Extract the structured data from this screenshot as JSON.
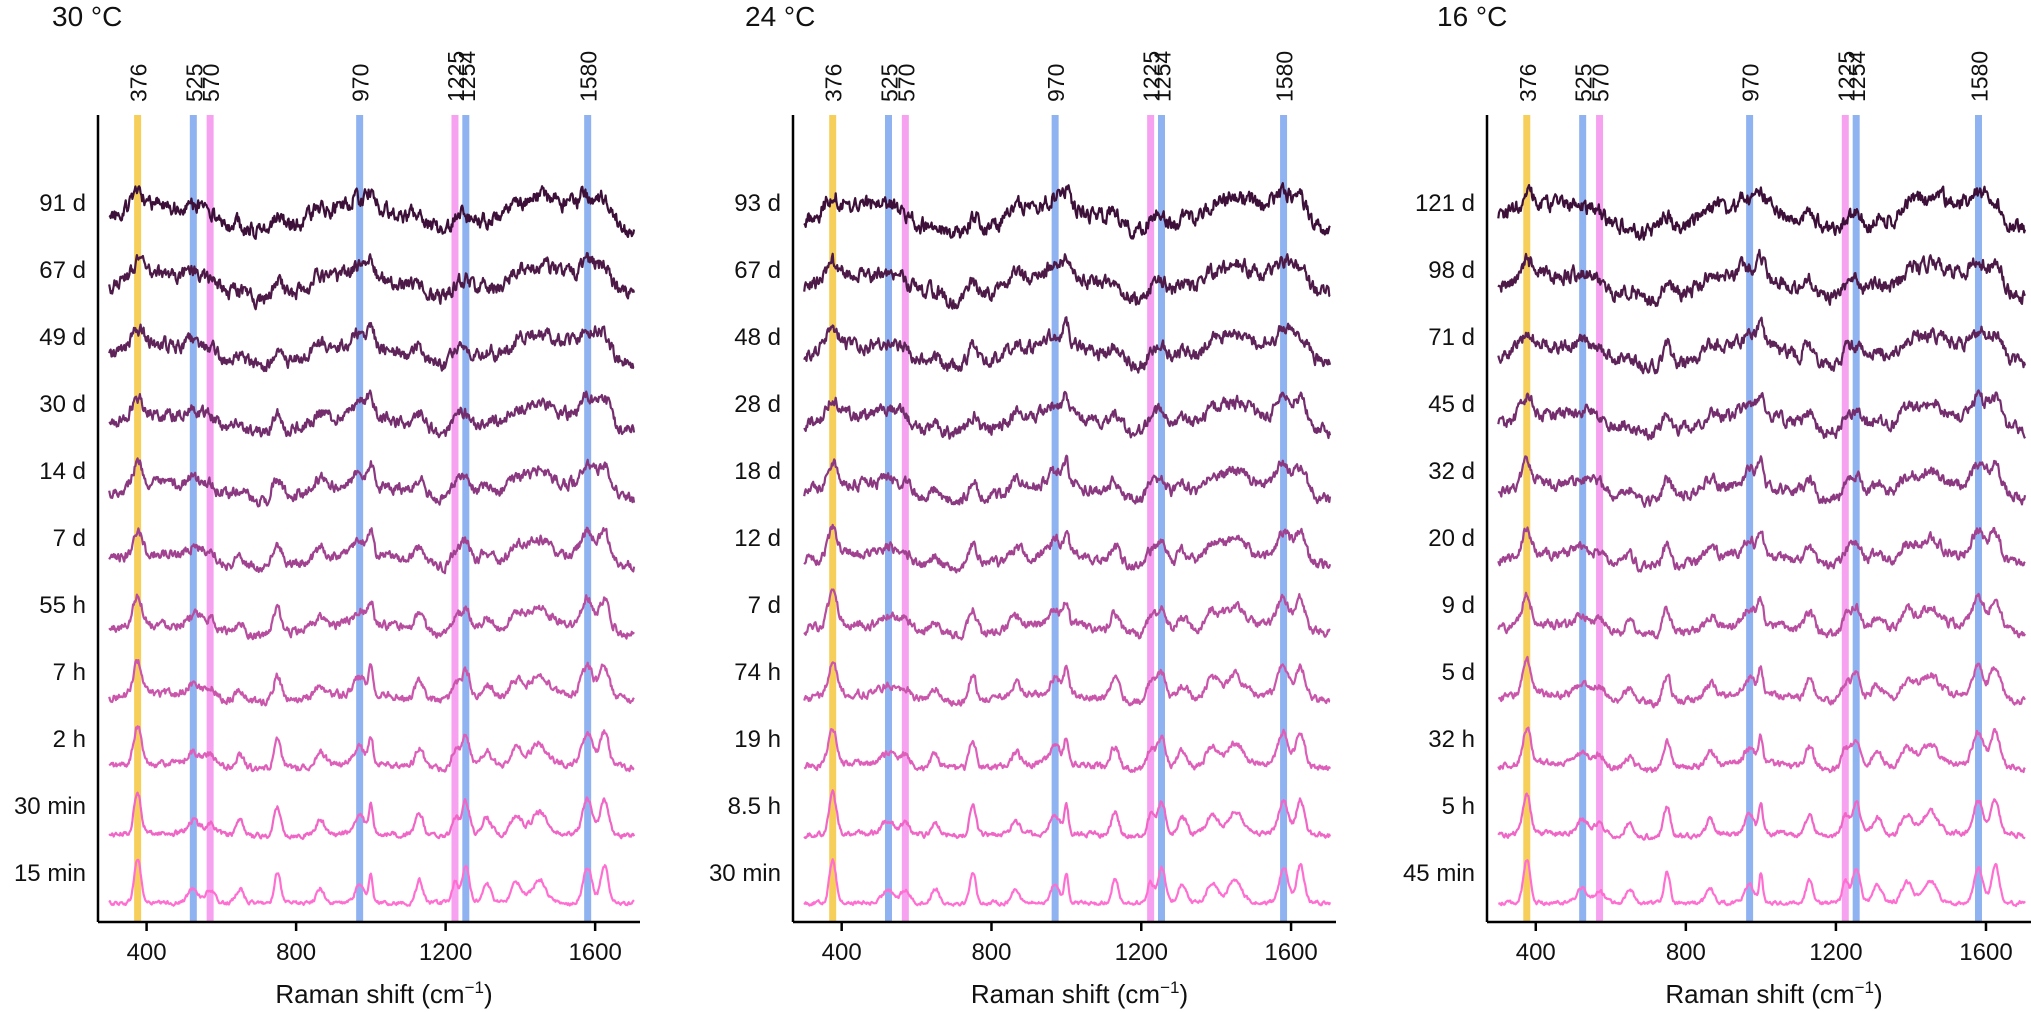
{
  "chart_data": [
    {
      "type": "line",
      "title": "30 °C",
      "xlabel": "Raman shift (cm",
      "xlabel_sup": "−1",
      "xlabel_end": ")",
      "xlim": [
        270,
        1720
      ],
      "xticks": [
        400,
        800,
        1200,
        1600
      ],
      "xtick_labels": [
        "400",
        "800",
        "1200",
        "1600"
      ],
      "peak_lines": [
        {
          "position": 376,
          "label": "376",
          "color": "#f6cf5a"
        },
        {
          "position": 525,
          "label": "525",
          "color": "#8fb2f0"
        },
        {
          "position": 570,
          "label": "570",
          "color": "#f7a2f0"
        },
        {
          "position": 970,
          "label": "970",
          "color": "#8fb2f0"
        },
        {
          "position": 1225,
          "label": "1225",
          "color": "#f7a2f0"
        },
        {
          "position": 1254,
          "label": "1254",
          "color": "#8fb2f0"
        },
        {
          "position": 1580,
          "label": "1580",
          "color": "#8fb2f0"
        }
      ],
      "series": [
        {
          "name": "15 min",
          "color": "#ff6fd2"
        },
        {
          "name": "30 min",
          "color": "#f066c6"
        },
        {
          "name": "2 h",
          "color": "#de5fba"
        },
        {
          "name": "7 h",
          "color": "#ca56ac"
        },
        {
          "name": "55 h",
          "color": "#b64d9e"
        },
        {
          "name": "7 d",
          "color": "#a04290"
        },
        {
          "name": "14 d",
          "color": "#8a3880"
        },
        {
          "name": "30 d",
          "color": "#732d6d"
        },
        {
          "name": "49 d",
          "color": "#5e2359"
        },
        {
          "name": "67 d",
          "color": "#4d1a48"
        },
        {
          "name": "91 d",
          "color": "#3d1039"
        }
      ]
    },
    {
      "type": "line",
      "title": "24 °C",
      "xlabel": "Raman shift (cm",
      "xlabel_sup": "−1",
      "xlabel_end": ")",
      "xlim": [
        270,
        1720
      ],
      "xticks": [
        400,
        800,
        1200,
        1600
      ],
      "xtick_labels": [
        "400",
        "800",
        "1200",
        "1600"
      ],
      "peak_lines": [
        {
          "position": 376,
          "label": "376",
          "color": "#f6cf5a"
        },
        {
          "position": 525,
          "label": "525",
          "color": "#8fb2f0"
        },
        {
          "position": 570,
          "label": "570",
          "color": "#f7a2f0"
        },
        {
          "position": 970,
          "label": "970",
          "color": "#8fb2f0"
        },
        {
          "position": 1225,
          "label": "1225",
          "color": "#f7a2f0"
        },
        {
          "position": 1254,
          "label": "1254",
          "color": "#8fb2f0"
        },
        {
          "position": 1580,
          "label": "1580",
          "color": "#8fb2f0"
        }
      ],
      "series": [
        {
          "name": "30 min",
          "color": "#ff6fd2"
        },
        {
          "name": "8.5 h",
          "color": "#f066c6"
        },
        {
          "name": "19 h",
          "color": "#de5fba"
        },
        {
          "name": "74 h",
          "color": "#ca56ac"
        },
        {
          "name": "7 d",
          "color": "#b64d9e"
        },
        {
          "name": "12 d",
          "color": "#a04290"
        },
        {
          "name": "18 d",
          "color": "#8a3880"
        },
        {
          "name": "28 d",
          "color": "#732d6d"
        },
        {
          "name": "48 d",
          "color": "#5e2359"
        },
        {
          "name": "67 d",
          "color": "#4d1a48"
        },
        {
          "name": "93 d",
          "color": "#3d1039"
        }
      ]
    },
    {
      "type": "line",
      "title": "16 °C",
      "xlabel": "Raman shift (cm",
      "xlabel_sup": "−1",
      "xlabel_end": ")",
      "xlim": [
        270,
        1720
      ],
      "xticks": [
        400,
        800,
        1200,
        1600
      ],
      "xtick_labels": [
        "400",
        "800",
        "1200",
        "1600"
      ],
      "peak_lines": [
        {
          "position": 376,
          "label": "376",
          "color": "#f6cf5a"
        },
        {
          "position": 525,
          "label": "525",
          "color": "#8fb2f0"
        },
        {
          "position": 570,
          "label": "570",
          "color": "#f7a2f0"
        },
        {
          "position": 970,
          "label": "970",
          "color": "#8fb2f0"
        },
        {
          "position": 1225,
          "label": "1225",
          "color": "#f7a2f0"
        },
        {
          "position": 1254,
          "label": "1254",
          "color": "#8fb2f0"
        },
        {
          "position": 1580,
          "label": "1580",
          "color": "#8fb2f0"
        }
      ],
      "series": [
        {
          "name": "45 min",
          "color": "#ff6fd2"
        },
        {
          "name": "5 h",
          "color": "#f066c6"
        },
        {
          "name": "32 h",
          "color": "#de5fba"
        },
        {
          "name": "5 d",
          "color": "#ca56ac"
        },
        {
          "name": "9 d",
          "color": "#b64d9e"
        },
        {
          "name": "20 d",
          "color": "#a04290"
        },
        {
          "name": "32 d",
          "color": "#8a3880"
        },
        {
          "name": "45 d",
          "color": "#732d6d"
        },
        {
          "name": "71 d",
          "color": "#5e2359"
        },
        {
          "name": "98 d",
          "color": "#4d1a48"
        },
        {
          "name": "121 d",
          "color": "#3d1039"
        }
      ]
    }
  ],
  "common_peaks": [
    {
      "center": 376,
      "amp": 1.0,
      "width": 9
    },
    {
      "center": 525,
      "amp": 0.35,
      "width": 14
    },
    {
      "center": 570,
      "amp": 0.3,
      "width": 12
    },
    {
      "center": 650,
      "amp": 0.35,
      "width": 10
    },
    {
      "center": 750,
      "amp": 0.75,
      "width": 8
    },
    {
      "center": 865,
      "amp": 0.35,
      "width": 10
    },
    {
      "center": 970,
      "amp": 0.45,
      "width": 12
    },
    {
      "center": 1000,
      "amp": 0.7,
      "width": 5
    },
    {
      "center": 1130,
      "amp": 0.55,
      "width": 9
    },
    {
      "center": 1225,
      "amp": 0.5,
      "width": 8
    },
    {
      "center": 1254,
      "amp": 0.85,
      "width": 10
    },
    {
      "center": 1310,
      "amp": 0.45,
      "width": 12
    },
    {
      "center": 1390,
      "amp": 0.5,
      "width": 14
    },
    {
      "center": 1450,
      "amp": 0.55,
      "width": 18
    },
    {
      "center": 1580,
      "amp": 0.85,
      "width": 12
    },
    {
      "center": 1625,
      "amp": 0.9,
      "width": 10
    }
  ]
}
